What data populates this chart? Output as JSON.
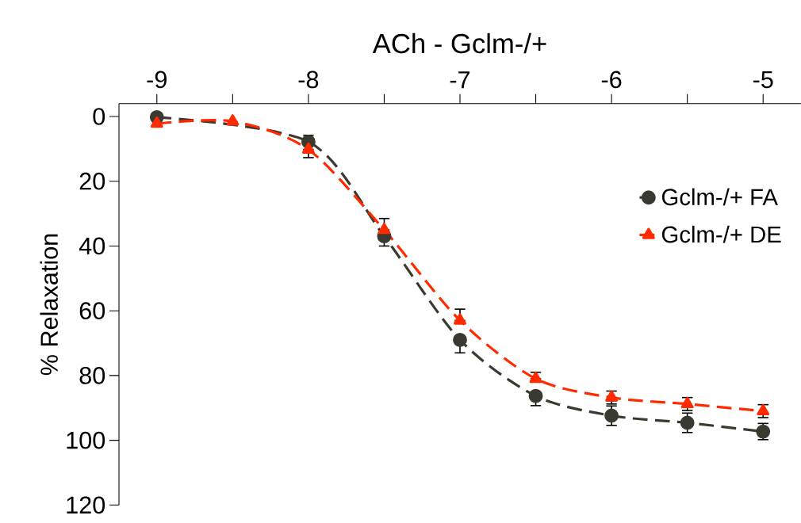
{
  "chart_data": {
    "type": "line",
    "title": "ACh - Gclm-/+",
    "ylabel": "% Relaxation",
    "x": [
      -9,
      -8.5,
      -8,
      -7.5,
      -7,
      -6.5,
      -6,
      -5.5,
      -5
    ],
    "series": [
      {
        "name": "Gclm-/+ FA",
        "color": "#3b3a30",
        "marker": "circle",
        "values": [
          0.2,
          null,
          7.8,
          37,
          69,
          86.3,
          92.4,
          94.6,
          97.3
        ],
        "errors": [
          null,
          null,
          [
            5.8,
            7.8
          ],
          [
            37,
            40
          ],
          [
            69,
            73
          ],
          [
            86.3,
            89.3
          ],
          3,
          3,
          2.5
        ]
      },
      {
        "name": "Gclm-/+ DE",
        "color": "#ff2a00",
        "marker": "triangle",
        "values": [
          2.2,
          1.5,
          10.2,
          35,
          63,
          81,
          86.8,
          88.8,
          91
        ],
        "errors": [
          null,
          null,
          [
            10.2,
            12.7
          ],
          [
            31.5,
            35
          ],
          [
            59.5,
            63
          ],
          [
            79,
            81
          ],
          2,
          2,
          2
        ]
      }
    ],
    "xlim": [
      -9.25,
      -4.75
    ],
    "xticks": [
      -9,
      {
        "value": -8.5,
        "label": null
      },
      -8,
      {
        "value": -7.5,
        "label": null
      },
      -7,
      {
        "value": -6.5,
        "label": null
      },
      -6,
      {
        "value": -5.5,
        "label": null
      },
      -5
    ],
    "ylim": [
      120,
      -4
    ],
    "yticks": [
      0,
      20,
      40,
      60,
      80,
      100,
      120
    ],
    "line_style": "dashed",
    "legend": "right"
  }
}
